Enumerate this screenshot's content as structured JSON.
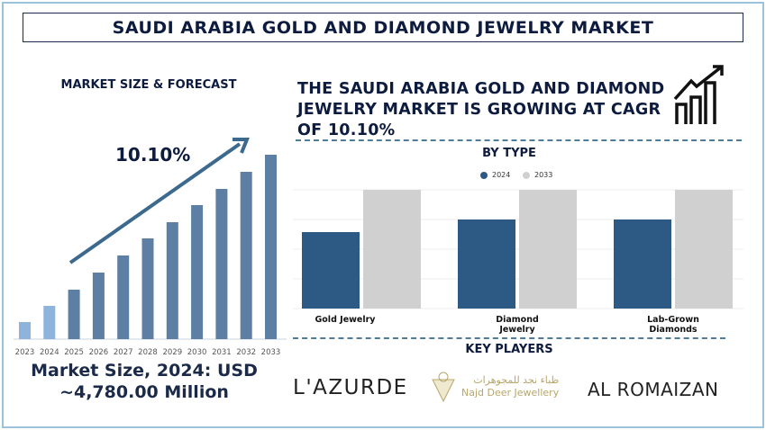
{
  "header": {
    "title": "SAUDI ARABIA GOLD AND DIAMOND JEWELRY MARKET"
  },
  "left": {
    "section_label": "MARKET SIZE & FORECAST",
    "cagr_label": "10.10%",
    "market_size_line1": "Market Size, 2024: USD",
    "market_size_line2": "~4,780.00 Million"
  },
  "right": {
    "headline": "THE SAUDI ARABIA GOLD AND DIAMOND JEWELRY MARKET IS GROWING AT CAGR OF 10.10%",
    "icon": "growth-chart-icon",
    "by_type_label": "BY TYPE"
  },
  "key_players": {
    "label": "KEY PLAYERS",
    "players": [
      "L'AZURDE",
      "Najd Deer Jewellery",
      "AL ROMAIZAN"
    ],
    "najd_arabic": "ظباء نجد للمجوهرات"
  },
  "chart_data": [
    {
      "type": "bar",
      "title": "MARKET SIZE & FORECAST",
      "categories": [
        "2023",
        "2024",
        "2025",
        "2026",
        "2027",
        "2028",
        "2029",
        "2030",
        "2031",
        "2032",
        "2033"
      ],
      "values": [
        19,
        37,
        55,
        74,
        93,
        112,
        130,
        149,
        167,
        186,
        205
      ],
      "value_units": "relative (no axis printed)",
      "colors": {
        "historical": "#8fb4dc",
        "forecast": "#5d7fa3"
      },
      "annotation": "10.10%",
      "grid": false
    },
    {
      "type": "bar",
      "title": "BY TYPE",
      "categories": [
        "Gold Jewelry",
        "Diamond Jewelry",
        "Lab-Grown Diamonds"
      ],
      "series": [
        {
          "name": "2024",
          "values": [
            85,
            99,
            99
          ],
          "color": "#2c5a85"
        },
        {
          "name": "2033",
          "values": [
            132,
            132,
            132
          ],
          "color": "#d0d0d0"
        }
      ],
      "value_units": "relative (no axis printed)",
      "ylim": [
        0,
        132
      ],
      "legend": "top-center",
      "grid": true
    }
  ]
}
